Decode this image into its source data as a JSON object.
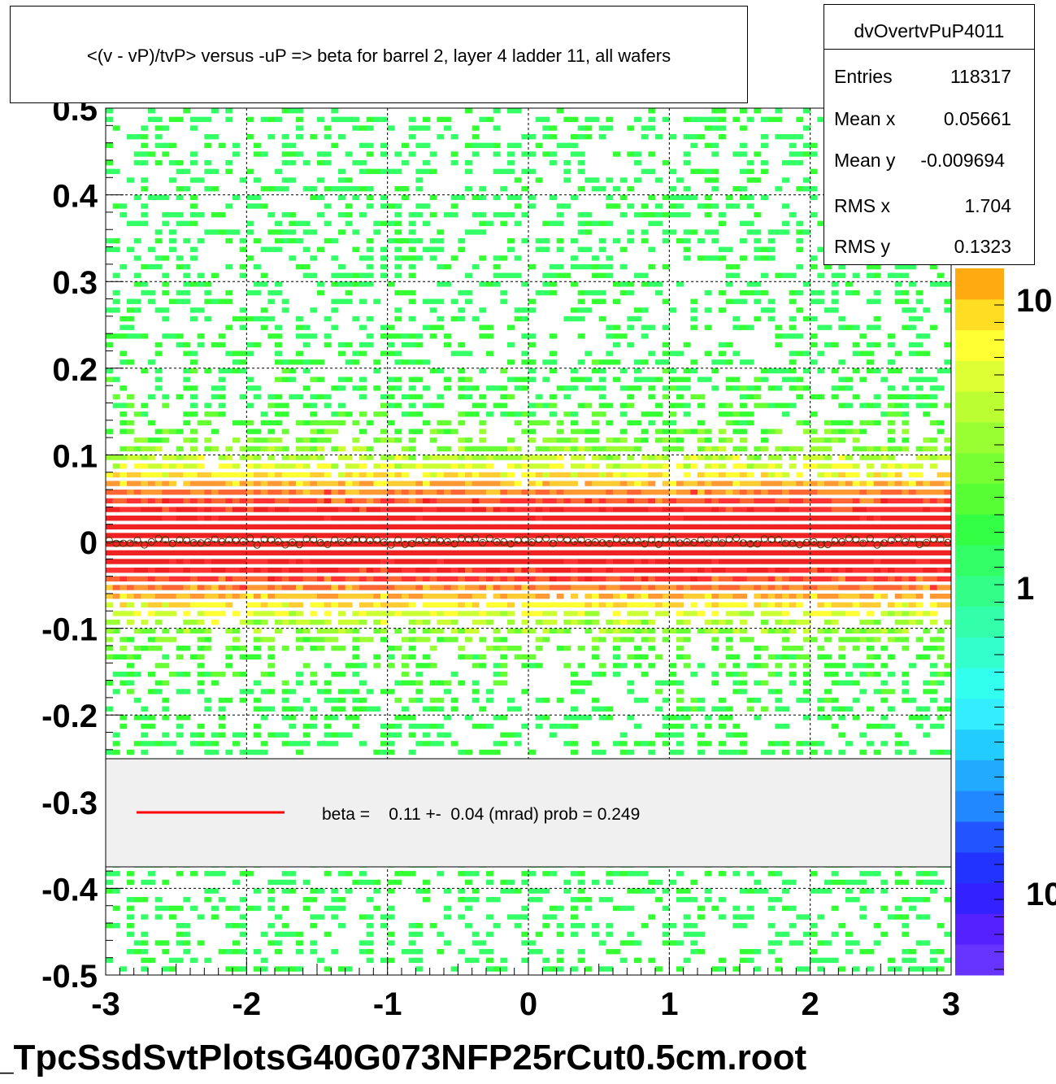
{
  "title": "<(v - vP)/tvP> versus  -uP => beta for barrel 2, layer 4 ladder 11, all wafers",
  "footer": "_TpcSsdSvtPlotsG40G073NFP25rCut0.5cm.root",
  "stats": {
    "name": "dvOvertvPuP4011",
    "rows": [
      {
        "label": "Entries",
        "value": "118317"
      },
      {
        "label": "Mean x",
        "value": "0.05661"
      },
      {
        "label": "Mean y",
        "value": "-0.009694"
      },
      {
        "label": "RMS x",
        "value": "1.704"
      },
      {
        "label": "RMS y",
        "value": "0.1323"
      }
    ]
  },
  "legend": {
    "label": "beta =    0.11 +-  0.04 (mrad) prob = 0.249",
    "line_color": "#ff0000"
  },
  "chart_data": {
    "type": "heatmap",
    "xlim": [
      -3,
      3
    ],
    "ylim": [
      -0.5,
      0.5
    ],
    "xticks": [
      "-3",
      "-2",
      "-1",
      "0",
      "1",
      "2",
      "3"
    ],
    "yticks": [
      "-0.5",
      "-0.4",
      "-0.3",
      "-0.2",
      "-0.1",
      "0",
      "0.1",
      "0.2",
      "0.3",
      "0.4",
      "0.5"
    ],
    "grid": true,
    "colorbar": {
      "scale": "log",
      "visible_labels": [
        "10",
        "1",
        "10"
      ]
    },
    "band_center_y": 0.0,
    "band_width_y": 0.13,
    "profile_points_y": 0.0
  }
}
